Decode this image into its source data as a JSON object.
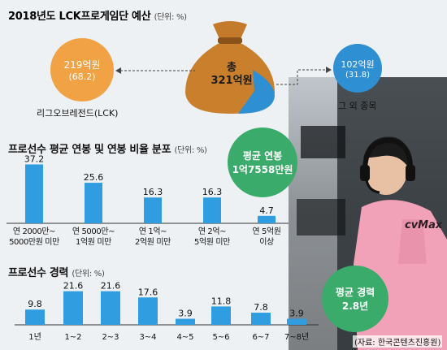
{
  "budget": {
    "title": "2018년도 LCK프로게임단 예산",
    "unit": "(단위: %)",
    "total_label_line1": "총",
    "total_label_line2": "321억원",
    "left_amount": "219억원",
    "left_pct": "(68.2)",
    "left_caption": "리그오브레전드(LCK)",
    "right_amount": "102억원",
    "right_pct": "(31.8)",
    "right_caption": "그 외 종목",
    "colors": {
      "orange": "#f0a245",
      "blue": "#2f8fd3",
      "bag": "#c27a26"
    }
  },
  "salary": {
    "title": "프로선수 평균 연봉 및 연봉 비율 분포",
    "unit": "(단위: %)",
    "avg_label_line1": "평균 연봉",
    "avg_label_line2": "1억7558만원",
    "avg_color": "#3bab6b"
  },
  "career": {
    "title": "프로선수 경력",
    "unit": "(단위: %)",
    "avg_label_line1": "평균 경력",
    "avg_label_line2": "2.8년",
    "avg_color": "#3bab6b"
  },
  "source": "(자료: 한국콘텐츠진흥원)",
  "photo_jersey_text": "cvMax",
  "bar_color": "#2f9de0",
  "chart_data": [
    {
      "type": "bar",
      "title": "프로선수 평균 연봉 및 연봉 비율 분포",
      "categories": [
        "연 2000만~\n5000만원 미만",
        "연 5000만~\n1억원 미만",
        "연 1억~\n2억원 미만",
        "연 2억~\n5억원 미만",
        "연 5억원\n이상"
      ],
      "values": [
        37.2,
        25.6,
        16.3,
        16.3,
        4.7
      ],
      "value_labels": [
        "37.2",
        "25.6",
        "16.3",
        "16.3",
        "4.7"
      ],
      "xlabel": "",
      "ylabel": "",
      "ylim": [
        0,
        40
      ]
    },
    {
      "type": "bar",
      "title": "프로선수 경력",
      "categories": [
        "1년",
        "1~2",
        "2~3",
        "3~4",
        "4~5",
        "5~6",
        "6~7",
        "7~8년"
      ],
      "values": [
        9.8,
        21.6,
        21.6,
        17.6,
        3.9,
        11.8,
        7.8,
        3.9
      ],
      "value_labels": [
        "9.8",
        "21.6",
        "21.6",
        "17.6",
        "3.9",
        "11.8",
        "7.8",
        "3.9"
      ],
      "xlabel": "",
      "ylabel": "",
      "ylim": [
        0,
        24
      ]
    }
  ]
}
